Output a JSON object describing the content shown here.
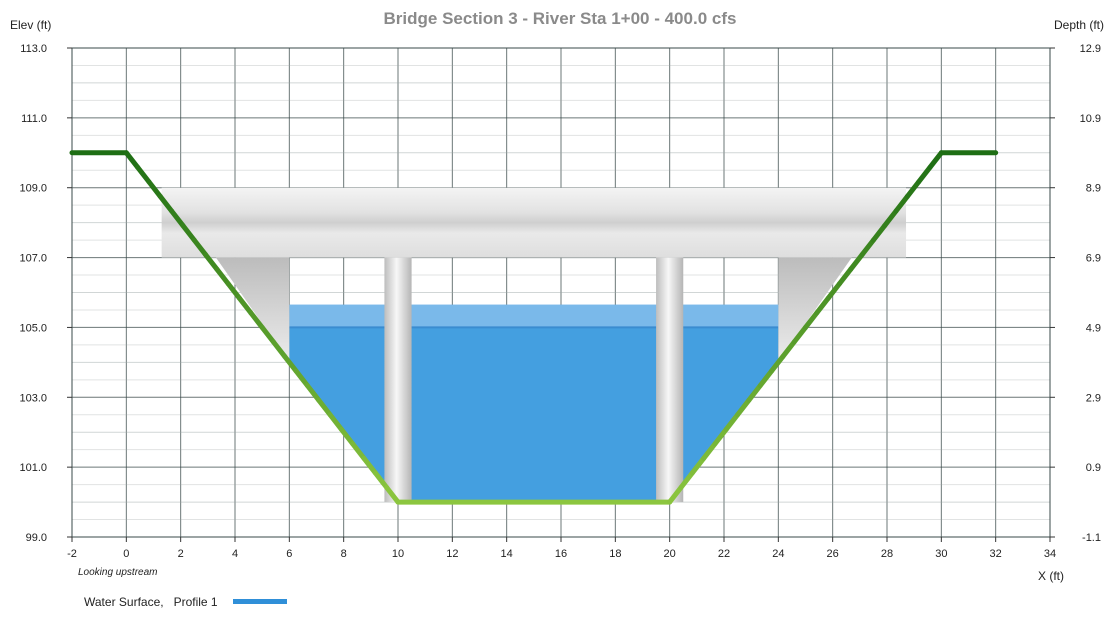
{
  "chart_data": {
    "type": "area",
    "title": "Bridge Section 3 - River Sta 1+00 - 400.0 cfs",
    "ylabel": "Elev (ft)",
    "y2label": "Depth (ft)",
    "xlabel": "X (ft)",
    "note": "Looking upstream",
    "xlim": [
      -2,
      34
    ],
    "ylim": [
      99.0,
      113.0
    ],
    "y2lim": [
      -1.1,
      12.9
    ],
    "x_ticks": [
      -2,
      0,
      2,
      4,
      6,
      8,
      10,
      12,
      14,
      16,
      18,
      20,
      22,
      24,
      26,
      28,
      30,
      32,
      34
    ],
    "y_ticks": [
      "99.0",
      "101.0",
      "103.0",
      "105.0",
      "107.0",
      "109.0",
      "111.0",
      "113.0"
    ],
    "y2_ticks": [
      "-1.1",
      "0.9",
      "2.9",
      "4.9",
      "6.9",
      "8.9",
      "10.9",
      "12.9"
    ],
    "grid": true,
    "ground": {
      "x": [
        -2,
        0,
        10,
        20,
        30,
        32
      ],
      "y": [
        110.0,
        110.0,
        100.0,
        100.0,
        110.0,
        110.0
      ]
    },
    "bridge_deck": {
      "x": [
        1.3,
        28.7
      ],
      "top": 109.0,
      "bottom": 107.0
    },
    "abutments": [
      {
        "x": [
          3.3,
          6.0
        ],
        "top": 107.0
      },
      {
        "x": [
          24.0,
          26.7
        ],
        "top": 107.0
      }
    ],
    "piers": [
      {
        "x": [
          9.5,
          10.5
        ],
        "top": 107.0,
        "bottom": 100.0
      },
      {
        "x": [
          19.5,
          20.5
        ],
        "top": 107.0,
        "bottom": 100.0
      }
    ],
    "water_surface": {
      "elevation": 105.65,
      "x": [
        6.0,
        24.0
      ]
    },
    "series": [
      {
        "name": "Water Surface,   Profile 1",
        "color": "#2f8fd8"
      }
    ],
    "legend": "bottom-left",
    "colors": {
      "ground_dark": "#1e6e14",
      "ground_light": "#8cc63f",
      "water": "#449fe0",
      "water_top": "#7ab9ea",
      "bridge": "#e6e6e6",
      "grid": "#3a4a4a"
    }
  }
}
